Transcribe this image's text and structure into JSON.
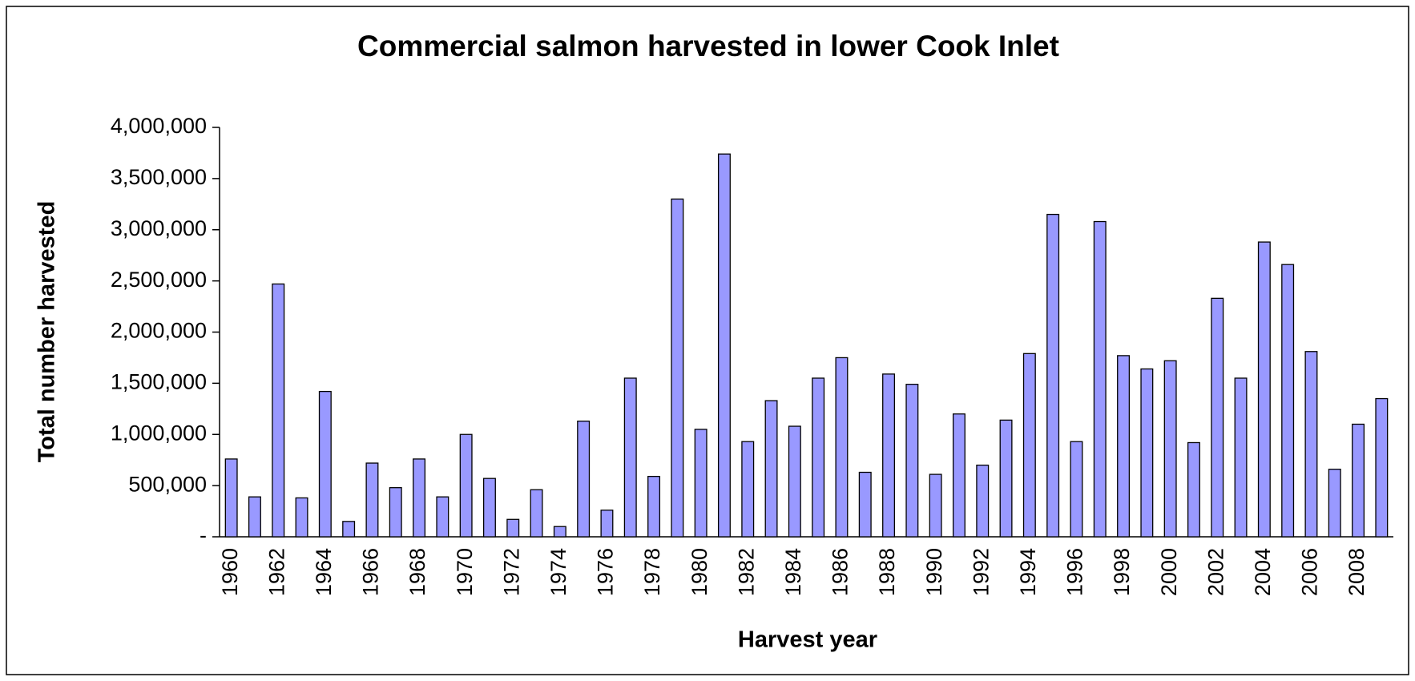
{
  "chart_data": {
    "type": "bar",
    "title": "Commercial salmon harvested in lower Cook Inlet",
    "x_label": "Harvest year",
    "y_label": "Total number harvested",
    "categories": [
      "1960",
      null,
      "1962",
      null,
      "1964",
      null,
      "1966",
      null,
      "1968",
      null,
      "1970",
      null,
      "1972",
      null,
      "1974",
      null,
      "1976",
      null,
      "1978",
      null,
      "1980",
      null,
      "1982",
      null,
      "1984",
      null,
      "1986",
      null,
      "1988",
      null,
      "1990",
      null,
      "1992",
      null,
      "1994",
      null,
      "1996",
      null,
      "1998",
      null,
      "2000",
      null,
      "2002",
      null,
      "2004",
      null,
      "2006",
      null,
      "2008",
      null
    ],
    "values": [
      760000,
      390000,
      2470000,
      380000,
      1420000,
      150000,
      720000,
      480000,
      760000,
      390000,
      1000000,
      570000,
      170000,
      460000,
      100000,
      1130000,
      260000,
      1550000,
      590000,
      3300000,
      1050000,
      3740000,
      930000,
      1330000,
      1080000,
      1550000,
      1750000,
      630000,
      1590000,
      1490000,
      610000,
      1200000,
      700000,
      1140000,
      1790000,
      3150000,
      930000,
      3080000,
      1770000,
      1640000,
      1720000,
      920000,
      2330000,
      1550000,
      2880000,
      2660000,
      1810000,
      660000,
      1100000,
      1350000
    ],
    "color": "#9999ff",
    "ylim": [
      0,
      4000000
    ],
    "yticks": [
      {
        "value": 0,
        "label": "-"
      },
      {
        "value": 500000,
        "label": "500,000"
      },
      {
        "value": 1000000,
        "label": "1,000,000"
      },
      {
        "value": 1500000,
        "label": "1,500,000"
      },
      {
        "value": 2000000,
        "label": "2,000,000"
      },
      {
        "value": 2500000,
        "label": "2,500,000"
      },
      {
        "value": 3000000,
        "label": "3,000,000"
      },
      {
        "value": 3500000,
        "label": "3,500,000"
      },
      {
        "value": 4000000,
        "label": "4,000,000"
      }
    ],
    "grid": false
  }
}
